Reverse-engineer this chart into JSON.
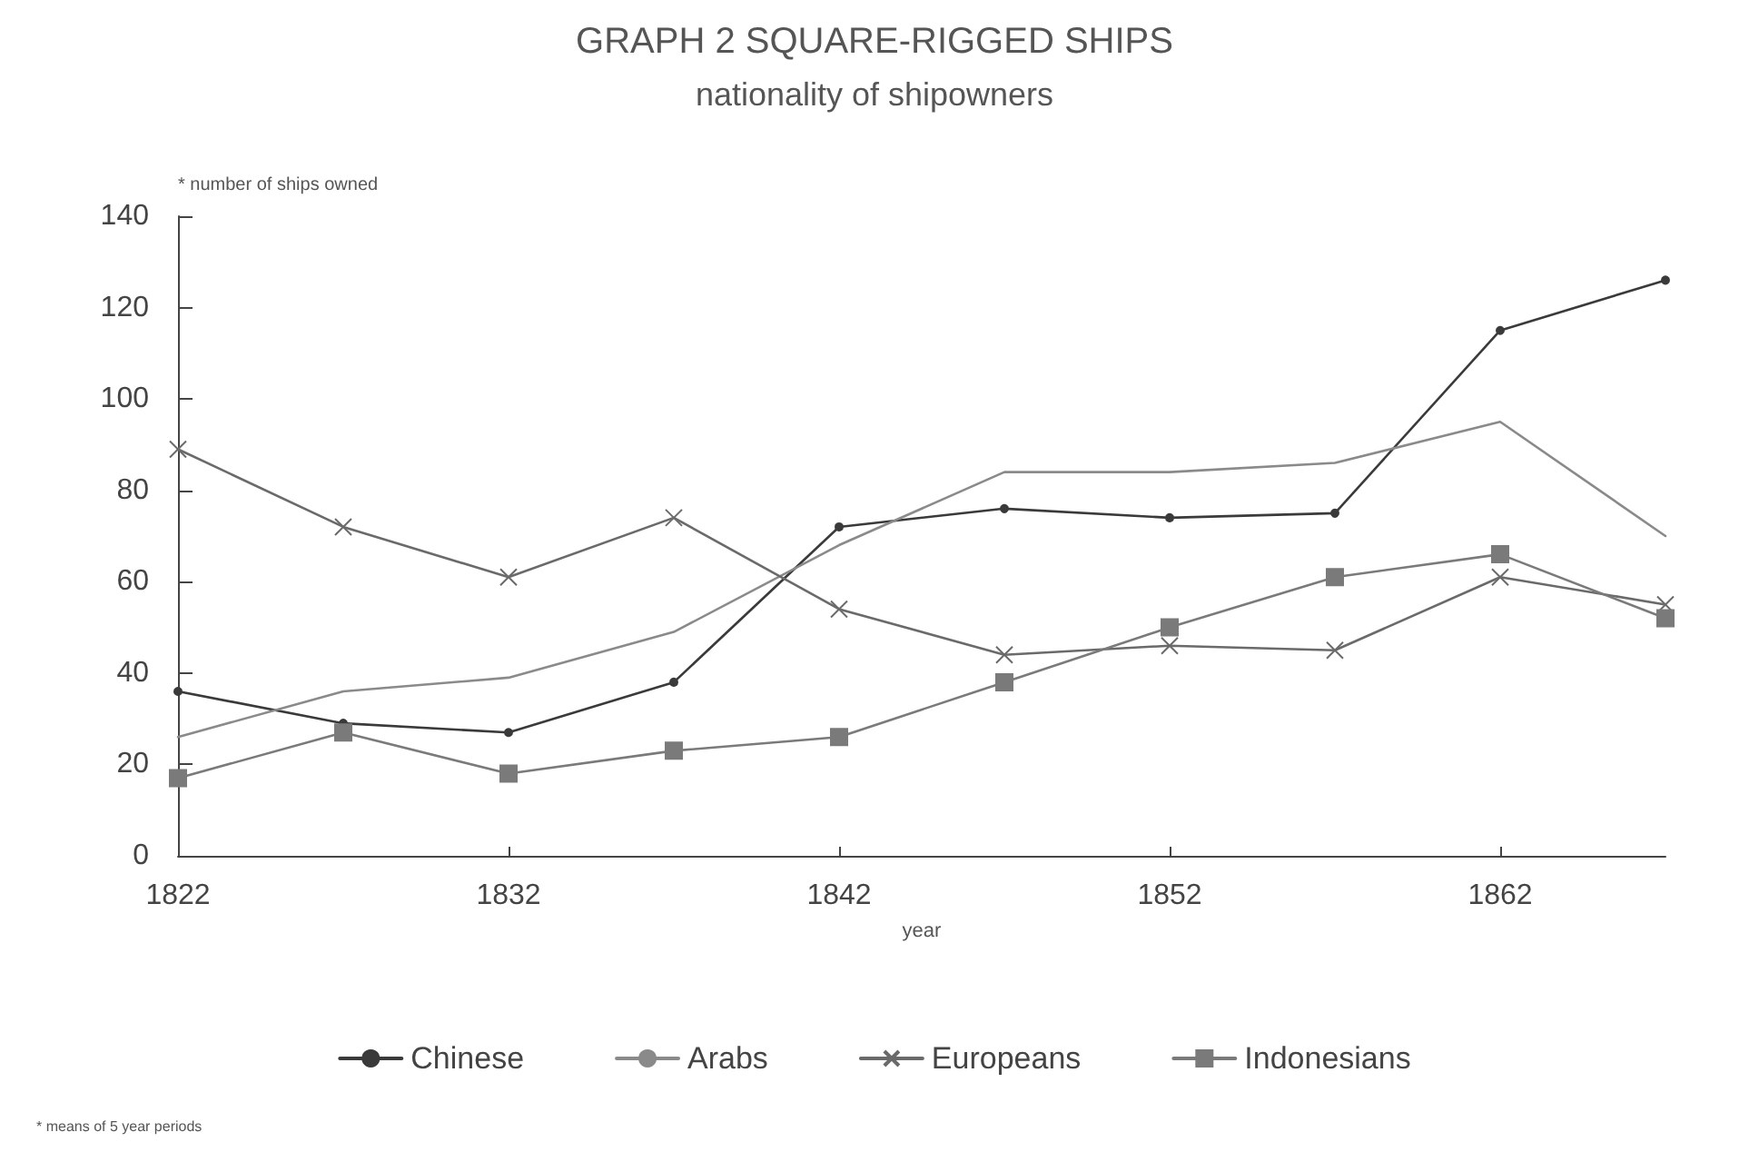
{
  "chart_data": {
    "type": "line",
    "title": "GRAPH 2 SQUARE-RIGGED SHIPS",
    "subtitle": "nationality of shipowners",
    "xlabel": "year",
    "ylabel": "* number of ships owned",
    "annotations": [
      "* means of 5 year periods"
    ],
    "x": [
      1822,
      1827,
      1832,
      1837,
      1842,
      1847,
      1852,
      1857,
      1862,
      1867
    ],
    "series": [
      {
        "name": "Chinese",
        "color": "#3a3a3a",
        "marker": "circle",
        "values": [
          36,
          29,
          27,
          38,
          72,
          76,
          74,
          75,
          115,
          126
        ]
      },
      {
        "name": "Arabs",
        "color": "#8a8a8a",
        "marker": "none",
        "values": [
          26,
          36,
          39,
          49,
          68,
          84,
          84,
          86,
          95,
          70
        ]
      },
      {
        "name": "Europeans",
        "color": "#6a6a6a",
        "marker": "cross",
        "values": [
          89,
          72,
          61,
          74,
          54,
          44,
          46,
          45,
          61,
          55
        ]
      },
      {
        "name": "Indonesians",
        "color": "#7a7a7a",
        "marker": "square",
        "values": [
          17,
          27,
          18,
          23,
          26,
          38,
          50,
          61,
          66,
          52
        ]
      }
    ],
    "xlim": [
      1822,
      1867
    ],
    "xticks": [
      1822,
      1832,
      1842,
      1852,
      1862
    ],
    "ylim": [
      0,
      140
    ],
    "yticks": [
      0,
      20,
      40,
      60,
      80,
      100,
      120,
      140
    ],
    "grid": false,
    "legend": "bottom",
    "line_style": "solid"
  }
}
